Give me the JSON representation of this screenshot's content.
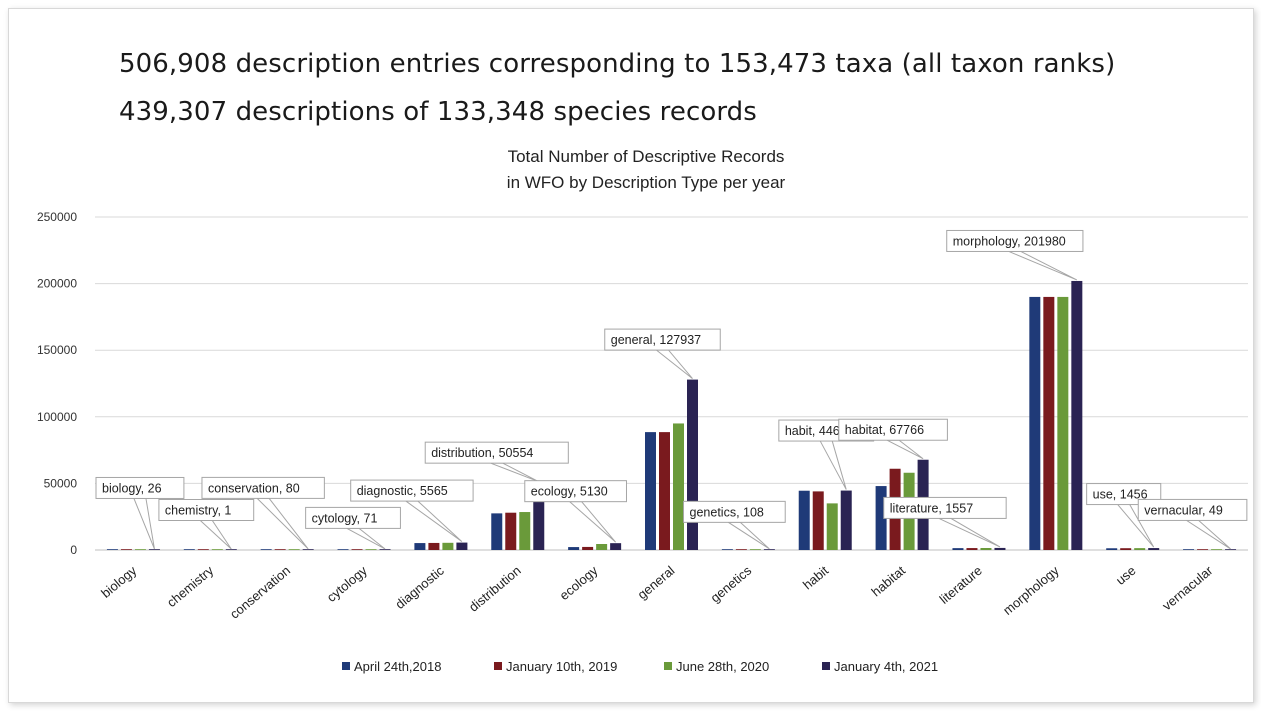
{
  "headlines": {
    "line1": "506,908 description entries corresponding to 153,473 taxa (all taxon ranks)",
    "line2": "439,307 descriptions of 133,348 species records"
  },
  "chart_data": {
    "type": "bar",
    "title": [
      "Total Number of Descriptive Records",
      "in WFO by Description Type per year"
    ],
    "xlabel": "",
    "ylabel": "",
    "ylim": [
      0,
      250000
    ],
    "yticks": [
      "0",
      "50000",
      "100000",
      "150000",
      "200000",
      "250000"
    ],
    "grid": true,
    "legend_position": "bottom",
    "categories": [
      "biology",
      "chemistry",
      "conservation",
      "cytology",
      "diagnostic",
      "distribution",
      "ecology",
      "general",
      "genetics",
      "habit",
      "habitat",
      "literature",
      "morphology",
      "use",
      "vernacular"
    ],
    "series": [
      {
        "name": "April 24th,2018",
        "color": "#1f3a78",
        "values": [
          26,
          1,
          80,
          71,
          5200,
          27500,
          2200,
          88500,
          105,
          44500,
          48000,
          1400,
          190000,
          1300,
          48
        ]
      },
      {
        "name": "January 10th, 2019",
        "color": "#7a1a1e",
        "values": [
          26,
          1,
          80,
          71,
          5300,
          28000,
          2300,
          88500,
          106,
          44000,
          61000,
          1450,
          190000,
          1350,
          48
        ]
      },
      {
        "name": "June 28th, 2020",
        "color": "#6a9a3a",
        "values": [
          26,
          1,
          80,
          71,
          5400,
          28500,
          4500,
          95000,
          107,
          35000,
          58000,
          1500,
          190000,
          1400,
          49
        ]
      },
      {
        "name": "January 4th, 2021",
        "color": "#2a2353",
        "values": [
          26,
          1,
          80,
          71,
          5565,
          50554,
          5130,
          127937,
          108,
          44628,
          67766,
          1557,
          201980,
          1456,
          49
        ]
      }
    ],
    "data_labels": [
      "biology, 26",
      "chemistry, 1",
      "conservation, 80",
      "cytology, 71",
      "diagnostic, 5565",
      "distribution, 50554",
      "ecology, 5130",
      "general, 127937",
      "genetics, 108",
      "habit, 44628",
      "habitat, 67766",
      "literature, 1557",
      "morphology, 201980",
      "use, 1456",
      "vernacular, 49"
    ]
  }
}
